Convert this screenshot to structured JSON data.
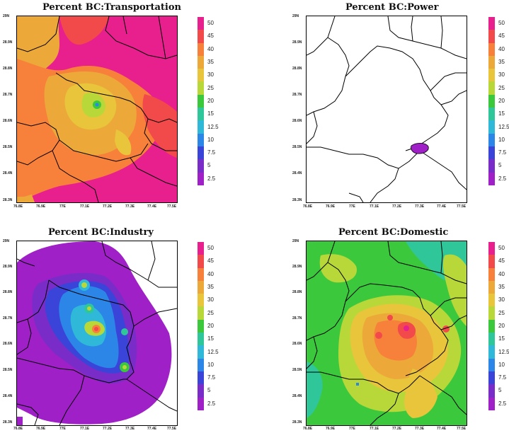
{
  "panels": [
    {
      "id": "transportation",
      "title": "Percent BC:Transportation",
      "yticks": [
        "29N",
        "28.9N",
        "28.8N",
        "28.7N",
        "28.6N",
        "28.5N",
        "28.4N",
        "28.3N"
      ],
      "xticks": [
        "76.8E",
        "76.9E",
        "77E",
        "77.1E",
        "77.2E",
        "77.3E",
        "77.4E",
        "77.5E"
      ]
    },
    {
      "id": "power",
      "title": "Percent BC:Power",
      "yticks": [
        "29N",
        "28.9N",
        "28.8N",
        "28.7N",
        "28.6N",
        "28.5N",
        "28.4N",
        "28.3N"
      ],
      "xticks": [
        "76.8E",
        "76.9E",
        "77E",
        "77.1E",
        "77.2E",
        "77.3E",
        "77.4E",
        "77.5E"
      ]
    },
    {
      "id": "industry",
      "title": "Percent BC:Industry",
      "yticks": [
        "29N",
        "28.9N",
        "28.8N",
        "28.7N",
        "28.6N",
        "28.5N",
        "28.4N",
        "28.3N"
      ],
      "xticks": [
        "76.8E",
        "76.9E",
        "77E",
        "77.1E",
        "77.2E",
        "77.3E",
        "77.4E",
        "77.5E"
      ]
    },
    {
      "id": "domestic",
      "title": "Percent BC:Domestic",
      "yticks": [
        "29N",
        "28.9N",
        "28.8N",
        "28.7N",
        "28.6N",
        "28.5N",
        "28.4N",
        "28.3N"
      ],
      "xticks": [
        "76.8E",
        "76.9E",
        "77E",
        "77.1E",
        "77.2E",
        "77.3E",
        "77.4E",
        "77.5E"
      ]
    }
  ],
  "colorbar": {
    "labels": [
      "50",
      "45",
      "40",
      "35",
      "30",
      "25",
      "20",
      "15",
      "12.5",
      "10",
      "7.5",
      "5",
      "2.5"
    ],
    "colors": [
      "#e8208e",
      "#f24a4a",
      "#f7813a",
      "#eca93a",
      "#e8c53a",
      "#b8d83a",
      "#3cc83c",
      "#2fc69a",
      "#2fb8d8",
      "#2c86e8",
      "#3a44d8",
      "#7a2cc8",
      "#a020c8"
    ]
  }
}
